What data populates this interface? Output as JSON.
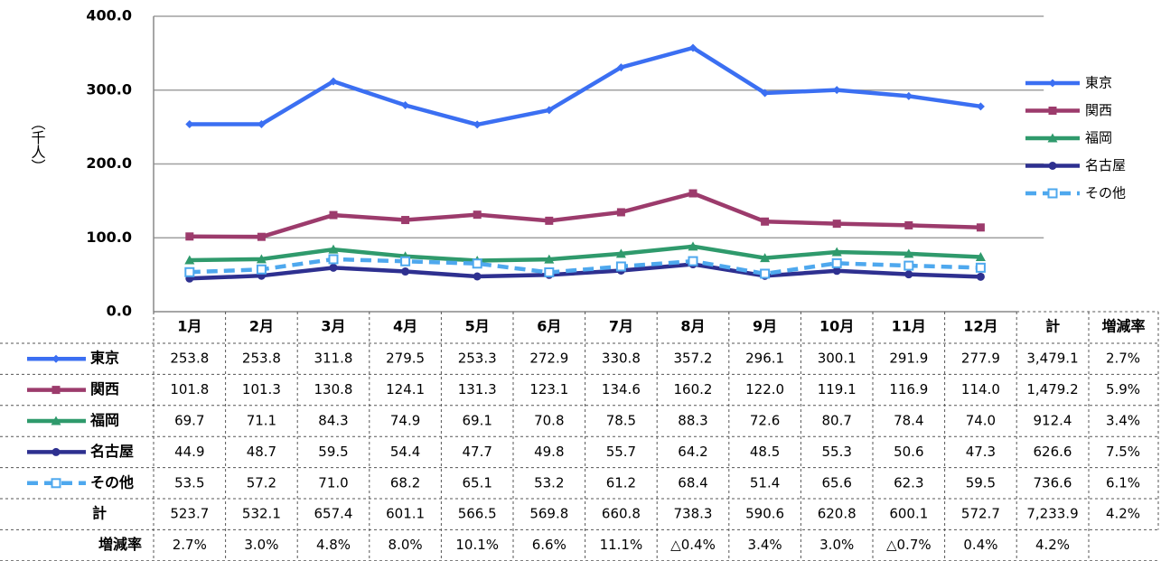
{
  "chart_data": {
    "type": "line",
    "y_label": "（千人）",
    "categories": [
      "1月",
      "2月",
      "3月",
      "4月",
      "5月",
      "6月",
      "7月",
      "8月",
      "9月",
      "10月",
      "11月",
      "12月"
    ],
    "ylim": [
      0,
      400
    ],
    "yticks": [
      {
        "value": 0,
        "label": "0.0"
      },
      {
        "value": 100,
        "label": "100.0"
      },
      {
        "value": 200,
        "label": "200.0"
      },
      {
        "value": 300,
        "label": "300.0"
      },
      {
        "value": 400,
        "label": "400.0"
      }
    ],
    "grid": true,
    "legend": "right",
    "series": [
      {
        "name": "東京",
        "color": "#3b6ff2",
        "marker": "diamond",
        "dash": false,
        "values": [
          253.8,
          253.8,
          311.8,
          279.5,
          253.3,
          272.9,
          330.8,
          357.2,
          296.1,
          300.1,
          291.9,
          277.9
        ],
        "value_labels": [
          "253.8",
          "253.8",
          "311.8",
          "279.5",
          "253.3",
          "272.9",
          "330.8",
          "357.2",
          "296.1",
          "300.1",
          "291.9",
          "277.9"
        ]
      },
      {
        "name": "関西",
        "color": "#9c3b6c",
        "marker": "square",
        "dash": false,
        "values": [
          101.8,
          101.3,
          130.8,
          124.1,
          131.3,
          123.1,
          134.6,
          160.2,
          122.0,
          119.1,
          116.9,
          114.0
        ],
        "value_labels": [
          "101.8",
          "101.3",
          "130.8",
          "124.1",
          "131.3",
          "123.1",
          "134.6",
          "160.2",
          "122.0",
          "119.1",
          "116.9",
          "114.0"
        ]
      },
      {
        "name": "福岡",
        "color": "#2f9a6c",
        "marker": "triangle",
        "dash": false,
        "values": [
          69.7,
          71.1,
          84.3,
          74.9,
          69.1,
          70.8,
          78.5,
          88.3,
          72.6,
          80.7,
          78.4,
          74.0
        ],
        "value_labels": [
          "69.7",
          "71.1",
          "84.3",
          "74.9",
          "69.1",
          "70.8",
          "78.5",
          "88.3",
          "72.6",
          "80.7",
          "78.4",
          "74.0"
        ]
      },
      {
        "name": "名古屋",
        "color": "#2e3090",
        "marker": "circle",
        "dash": false,
        "values": [
          44.9,
          48.7,
          59.5,
          54.4,
          47.7,
          49.8,
          55.7,
          64.2,
          48.5,
          55.3,
          50.6,
          47.3
        ],
        "value_labels": [
          "44.9",
          "48.7",
          "59.5",
          "54.4",
          "47.7",
          "49.8",
          "55.7",
          "64.2",
          "48.5",
          "55.3",
          "50.6",
          "47.3"
        ]
      },
      {
        "name": "その他",
        "color": "#4ea8ee",
        "marker": "square-open",
        "dash": true,
        "values": [
          53.5,
          57.2,
          71.0,
          68.2,
          65.1,
          53.2,
          61.2,
          68.4,
          51.4,
          65.6,
          62.3,
          59.5
        ],
        "value_labels": [
          "53.5",
          "57.2",
          "71.0",
          "68.2",
          "65.1",
          "53.2",
          "61.2",
          "68.4",
          "51.4",
          "65.6",
          "62.3",
          "59.5"
        ]
      }
    ],
    "table": {
      "extra_columns": [
        "計",
        "増減率"
      ],
      "series_totals": [
        "3,479.1",
        "1,479.2",
        "912.4",
        "626.6",
        "736.6"
      ],
      "series_rates": [
        "2.7%",
        "5.9%",
        "3.4%",
        "7.5%",
        "6.1%"
      ],
      "total_row": {
        "label": "計",
        "values": [
          "523.7",
          "532.1",
          "657.4",
          "601.1",
          "566.5",
          "569.8",
          "660.8",
          "738.3",
          "590.6",
          "620.8",
          "600.1",
          "572.7"
        ],
        "total": "7,233.9",
        "rate": "4.2%"
      },
      "rate_row": {
        "label": "増減率",
        "values": [
          "2.7%",
          "3.0%",
          "4.8%",
          "8.0%",
          "10.1%",
          "6.6%",
          "11.1%",
          "△0.4%",
          "3.4%",
          "3.0%",
          "△0.7%",
          "0.4%"
        ],
        "total": "4.2%"
      }
    }
  }
}
